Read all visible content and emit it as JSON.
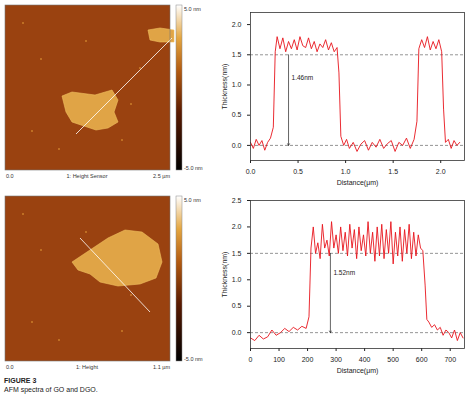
{
  "chart_data": [
    {
      "type": "line",
      "x_label": "Distance(μm)",
      "y_label": "Thickness(nm)",
      "xlim": [
        0,
        2.25
      ],
      "ylim": [
        -0.25,
        2.2
      ],
      "xticks": [
        {
          "value": 0,
          "label": "0.0"
        },
        {
          "value": 0.5,
          "label": "0.5"
        },
        {
          "value": 1,
          "label": "1.0"
        },
        {
          "value": 1.5,
          "label": "1.5"
        },
        {
          "value": 2,
          "label": "2.0"
        }
      ],
      "yticks": [
        {
          "value": 0,
          "label": "0.0"
        },
        {
          "value": 0.5,
          "label": "0.5"
        },
        {
          "value": 1,
          "label": "1.0"
        },
        {
          "value": 1.5,
          "label": "1.5"
        },
        {
          "value": 2,
          "label": "2.0"
        }
      ],
      "color": "#e8141c",
      "hlines": [
        0,
        1.5
      ],
      "annotation": {
        "text": "1.46nm",
        "x": 0.4,
        "y1": 1.5,
        "y2": 0
      },
      "x": [
        0,
        0.03,
        0.06,
        0.09,
        0.12,
        0.15,
        0.18,
        0.21,
        0.24,
        0.26,
        0.28,
        0.31,
        0.34,
        0.37,
        0.4,
        0.43,
        0.46,
        0.49,
        0.52,
        0.55,
        0.58,
        0.61,
        0.64,
        0.67,
        0.7,
        0.73,
        0.76,
        0.79,
        0.82,
        0.85,
        0.88,
        0.91,
        0.93,
        0.95,
        0.98,
        1.01,
        1.04,
        1.08,
        1.12,
        1.16,
        1.2,
        1.24,
        1.28,
        1.32,
        1.36,
        1.4,
        1.44,
        1.48,
        1.52,
        1.56,
        1.6,
        1.64,
        1.68,
        1.72,
        1.75,
        1.77,
        1.8,
        1.83,
        1.86,
        1.89,
        1.92,
        1.95,
        1.98,
        2.01,
        2.03,
        2.05,
        2.08,
        2.11,
        2.14,
        2.17,
        2.2
      ],
      "values": [
        0.05,
        -0.05,
        0.1,
        0.0,
        0.08,
        -0.08,
        0.05,
        0.12,
        0.3,
        1.55,
        1.8,
        1.6,
        1.78,
        1.55,
        1.72,
        1.6,
        1.75,
        1.58,
        1.8,
        1.65,
        1.62,
        1.78,
        1.6,
        1.72,
        1.55,
        1.68,
        1.62,
        1.75,
        1.58,
        1.7,
        1.55,
        1.62,
        1.2,
        0.15,
        0.0,
        0.1,
        -0.05,
        0.05,
        -0.1,
        0.02,
        0.08,
        -0.08,
        0.05,
        -0.03,
        0.1,
        -0.05,
        0.03,
        0.08,
        -0.1,
        0.05,
        0.0,
        0.12,
        -0.05,
        0.1,
        0.4,
        1.6,
        1.75,
        1.62,
        1.8,
        1.58,
        1.72,
        1.6,
        1.75,
        1.55,
        0.6,
        0.05,
        0.1,
        -0.05,
        0.08,
        0.0,
        0.05
      ]
    },
    {
      "type": "line",
      "x_label": "Distance(μm)",
      "y_label": "Thickness(nm)",
      "xlim": [
        0,
        750
      ],
      "ylim": [
        -0.3,
        2.5
      ],
      "xticks": [
        0,
        100,
        200,
        300,
        400,
        500,
        600,
        700
      ],
      "yticks": [
        {
          "value": 0,
          "label": "0.0"
        },
        {
          "value": 0.5,
          "label": "0.5"
        },
        {
          "value": 1,
          "label": "1.0"
        },
        {
          "value": 1.5,
          "label": "1.5"
        },
        {
          "value": 2,
          "label": "2.0"
        },
        {
          "value": 2.5,
          "label": "2.5"
        }
      ],
      "color": "#e8141c",
      "hlines": [
        0,
        1.5
      ],
      "annotation": {
        "text": "1.52nm",
        "x": 280,
        "y1": 1.5,
        "y2": 0
      },
      "x": [
        0,
        15,
        30,
        45,
        60,
        75,
        90,
        105,
        120,
        135,
        150,
        165,
        180,
        195,
        205,
        212,
        220,
        228,
        236,
        244,
        252,
        260,
        268,
        276,
        284,
        292,
        300,
        308,
        316,
        324,
        332,
        340,
        348,
        356,
        364,
        372,
        380,
        388,
        396,
        404,
        412,
        420,
        428,
        436,
        444,
        452,
        460,
        468,
        476,
        484,
        492,
        500,
        508,
        516,
        524,
        532,
        540,
        548,
        556,
        564,
        572,
        580,
        588,
        596,
        604,
        612,
        618,
        625,
        635,
        645,
        655,
        665,
        675,
        685,
        695,
        705,
        715,
        725,
        735,
        745
      ],
      "values": [
        -0.1,
        -0.15,
        -0.05,
        -0.12,
        -0.08,
        0.05,
        -0.05,
        0.0,
        0.08,
        0.02,
        0.1,
        0.05,
        0.12,
        0.08,
        0.3,
        1.6,
        2.0,
        1.5,
        1.7,
        1.4,
        2.05,
        1.6,
        1.75,
        1.45,
        2.1,
        1.6,
        1.85,
        1.5,
        2.0,
        1.55,
        1.9,
        1.45,
        2.05,
        1.6,
        1.95,
        1.4,
        2.0,
        1.55,
        1.85,
        1.45,
        2.1,
        1.5,
        1.9,
        1.35,
        2.0,
        1.45,
        2.05,
        1.4,
        1.95,
        1.5,
        2.1,
        1.3,
        1.9,
        1.45,
        2.0,
        1.35,
        1.95,
        1.5,
        2.05,
        1.4,
        1.9,
        1.45,
        1.85,
        1.6,
        1.55,
        0.9,
        0.25,
        0.2,
        0.1,
        0.15,
        0.05,
        0.1,
        -0.05,
        0.05,
        0.0,
        -0.1,
        0.05,
        -0.15,
        0.0,
        -0.1
      ]
    }
  ],
  "images": [
    {
      "label": "1: Height Sensor",
      "scale_top": "5.0 nm",
      "scale_bottom": "-5.0 nm",
      "x_start": "0.0",
      "x_end": "2.5 µm"
    },
    {
      "label": "1: Height",
      "scale_top": "5.0 nm",
      "scale_bottom": "-5.0 nm",
      "x_start": "0.0",
      "x_end": "1.1 µm"
    }
  ],
  "caption": {
    "title": "FIGURE 3",
    "text": "AFM spectra of GO and DGO."
  }
}
